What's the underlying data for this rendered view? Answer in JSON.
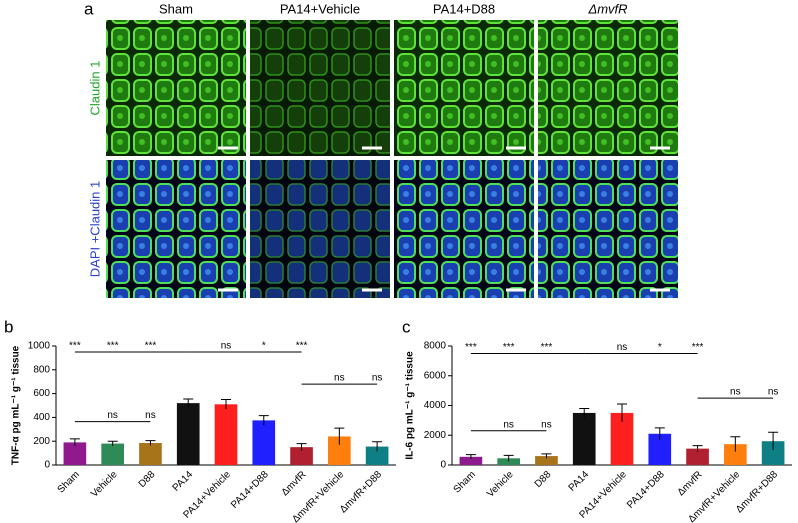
{
  "panel_a": {
    "label": "a",
    "columns": [
      "Sham",
      "PA14+Vehicle",
      "PA14+D88",
      "ΔmvfR"
    ],
    "rows": [
      "Claudin 1",
      "DAPI +Claudin 1"
    ]
  },
  "chart_data": [
    {
      "type": "bar",
      "panel": "b",
      "ylabel": "TNF-α pg mL⁻¹ g⁻¹ tissue",
      "categories": [
        "Sham",
        "Vehicle",
        "D88",
        "PA14",
        "PA14+Vehicle",
        "PA14+D88",
        "ΔmvfR",
        "ΔmvfR+Vehicle",
        "ΔmvfR+D88"
      ],
      "values": [
        190,
        180,
        185,
        520,
        510,
        375,
        150,
        240,
        155
      ],
      "errors": [
        30,
        20,
        20,
        35,
        40,
        40,
        30,
        70,
        40
      ],
      "colors": [
        "#8e1a8e",
        "#2e8b57",
        "#a8741a",
        "#111111",
        "#ff1f1f",
        "#2020ff",
        "#b02030",
        "#ff7f0e",
        "#0f7f86"
      ],
      "ylim": [
        0,
        1000
      ],
      "yticks": [
        0,
        200,
        400,
        600,
        800,
        1000
      ],
      "brackets": [
        {
          "span": [
            0,
            3
          ],
          "y": 950
        },
        {
          "span": [
            3,
            6
          ],
          "y": 950
        },
        {
          "span": [
            0,
            2
          ],
          "y": 365
        },
        {
          "span": [
            6,
            8
          ],
          "y": 680
        }
      ],
      "significance": [
        {
          "text": "***",
          "at": 0,
          "y": 950
        },
        {
          "text": "***",
          "at": 1,
          "y": 950
        },
        {
          "text": "***",
          "at": 2,
          "y": 950
        },
        {
          "text": "ns",
          "at": 4,
          "y": 950
        },
        {
          "text": "*",
          "at": 5,
          "y": 950
        },
        {
          "text": "***",
          "at": 6,
          "y": 950
        },
        {
          "text": "ns",
          "at": 1,
          "y": 365
        },
        {
          "text": "ns",
          "at": 2,
          "y": 365
        },
        {
          "text": "ns",
          "at": 7,
          "y": 680
        },
        {
          "text": "ns",
          "at": 8,
          "y": 680
        }
      ]
    },
    {
      "type": "bar",
      "panel": "c",
      "ylabel": "IL-6 pg mL⁻¹ g⁻¹ tissue",
      "categories": [
        "Sham",
        "Vehicle",
        "D88",
        "PA14",
        "PA14+Vehicle",
        "PA14+D88",
        "ΔmvfR",
        "ΔmvfR+Vehicle",
        "ΔmvfR+D88"
      ],
      "values": [
        550,
        450,
        600,
        3500,
        3500,
        2100,
        1100,
        1400,
        1600
      ],
      "errors": [
        150,
        200,
        150,
        300,
        600,
        400,
        200,
        500,
        600
      ],
      "colors": [
        "#8e1a8e",
        "#2e8b57",
        "#a8741a",
        "#111111",
        "#ff1f1f",
        "#2020ff",
        "#b02030",
        "#ff7f0e",
        "#0f7f86"
      ],
      "ylim": [
        0,
        8000
      ],
      "yticks": [
        0,
        2000,
        4000,
        6000,
        8000
      ],
      "brackets": [
        {
          "span": [
            0,
            3
          ],
          "y": 7500
        },
        {
          "span": [
            3,
            6
          ],
          "y": 7500
        },
        {
          "span": [
            0,
            2
          ],
          "y": 2300
        },
        {
          "span": [
            6,
            8
          ],
          "y": 4500
        }
      ],
      "significance": [
        {
          "text": "***",
          "at": 0,
          "y": 7500
        },
        {
          "text": "***",
          "at": 1,
          "y": 7500
        },
        {
          "text": "***",
          "at": 2,
          "y": 7500
        },
        {
          "text": "ns",
          "at": 4,
          "y": 7500
        },
        {
          "text": "*",
          "at": 5,
          "y": 7500
        },
        {
          "text": "***",
          "at": 6,
          "y": 7500
        },
        {
          "text": "ns",
          "at": 1,
          "y": 2300
        },
        {
          "text": "ns",
          "at": 2,
          "y": 2300
        },
        {
          "text": "ns",
          "at": 7,
          "y": 4500
        },
        {
          "text": "ns",
          "at": 8,
          "y": 4500
        }
      ]
    }
  ]
}
